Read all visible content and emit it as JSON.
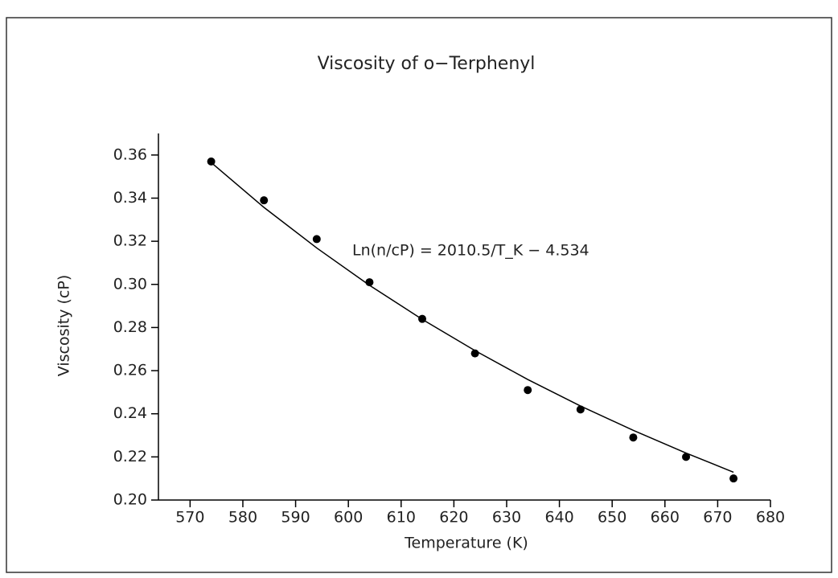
{
  "chart_data": {
    "type": "scatter",
    "title": "Viscosity of o−Terphenyl",
    "xlabel": "Temperature (K)",
    "ylabel": "Viscosity (cP)",
    "annotation": "Ln(n/cP) = 2010.5/T_K − 4.534",
    "series": [
      {
        "marker": "dot",
        "color": "#000000",
        "x": [
          574,
          584,
          594,
          604,
          614,
          624,
          634,
          644,
          654,
          664,
          673
        ],
        "values": [
          0.357,
          0.339,
          0.321,
          0.301,
          0.284,
          0.268,
          0.251,
          0.242,
          0.229,
          0.22,
          0.21
        ]
      },
      {
        "marker": "line",
        "color": "#000000",
        "x": [
          574,
          584,
          594,
          604,
          614,
          624,
          634,
          644,
          654,
          664,
          673
        ],
        "values": [
          0.3565,
          0.3357,
          0.3169,
          0.2996,
          0.2838,
          0.2693,
          0.2559,
          0.2436,
          0.2323,
          0.2218,
          0.2129
        ]
      }
    ],
    "xlim": [
      564,
      680
    ],
    "xticks": [
      570,
      580,
      590,
      600,
      610,
      620,
      630,
      640,
      650,
      660,
      670,
      680
    ],
    "ylim": [
      0.2,
      0.37
    ],
    "yticks": [
      {
        "value": 0.2,
        "label": "0.20"
      },
      {
        "value": 0.22,
        "label": "0.22"
      },
      {
        "value": 0.24,
        "label": "0.24"
      },
      {
        "value": 0.26,
        "label": "0.26"
      },
      {
        "value": 0.28,
        "label": "0.28"
      },
      {
        "value": 0.3,
        "label": "0.30"
      },
      {
        "value": 0.32,
        "label": "0.32"
      },
      {
        "value": 0.34,
        "label": "0.34"
      },
      {
        "value": 0.36,
        "label": "0.36"
      }
    ],
    "grid": false
  }
}
